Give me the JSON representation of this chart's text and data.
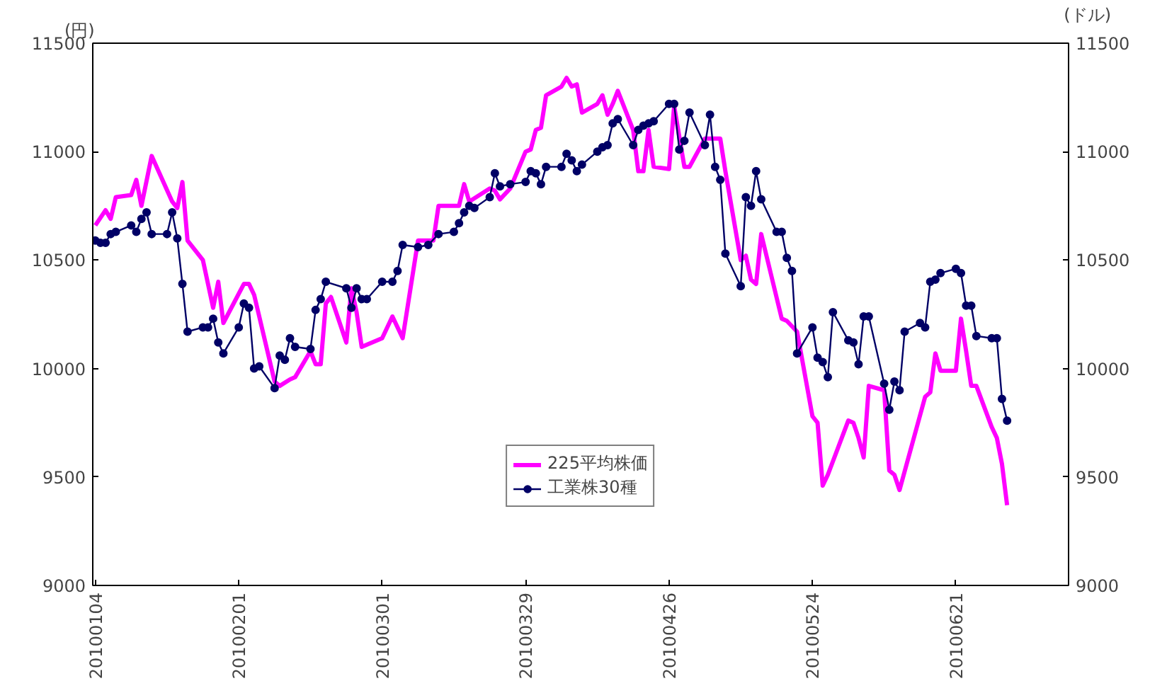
{
  "chart_data": {
    "type": "line",
    "ylabel": "(円)",
    "y2label": "(ドル)",
    "xlim": [
      "2010-01-03T12:00",
      "2010-07-13"
    ],
    "xticks": [
      {
        "value": "2010-01-04",
        "label": "20100104"
      },
      {
        "value": "2010-02-01",
        "label": "20100201"
      },
      {
        "value": "2010-03-01",
        "label": "20100301"
      },
      {
        "value": "2010-03-29",
        "label": "20100329"
      },
      {
        "value": "2010-04-26",
        "label": "20100426"
      },
      {
        "value": "2010-05-24",
        "label": "20100524"
      },
      {
        "value": "2010-06-21",
        "label": "20100621"
      }
    ],
    "ylim": [
      9000,
      11500
    ],
    "yticks": [
      9000,
      9500,
      10000,
      10500,
      11000,
      11500
    ],
    "y2lim": [
      9000,
      11500
    ],
    "y2ticks": [
      9000,
      9500,
      10000,
      10500,
      11000,
      11500
    ],
    "grid": false,
    "legend": "bottom",
    "series": [
      {
        "name": "225平均株価",
        "color": "#ff00ff",
        "marker": "none",
        "x": [
          "2010-01-04",
          "2010-01-06",
          "2010-01-07",
          "2010-01-08",
          "2010-01-11",
          "2010-01-12",
          "2010-01-13",
          "2010-01-15",
          "2010-01-19",
          "2010-01-20",
          "2010-01-21",
          "2010-01-22",
          "2010-01-25",
          "2010-01-27",
          "2010-01-28",
          "2010-01-29",
          "2010-02-02",
          "2010-02-03",
          "2010-02-04",
          "2010-02-08",
          "2010-02-09",
          "2010-02-11",
          "2010-02-12",
          "2010-02-15",
          "2010-02-16",
          "2010-02-17",
          "2010-02-18",
          "2010-02-19",
          "2010-02-22",
          "2010-02-23",
          "2010-02-24",
          "2010-02-25",
          "2010-03-01",
          "2010-03-03",
          "2010-03-05",
          "2010-03-08",
          "2010-03-11",
          "2010-03-12",
          "2010-03-16",
          "2010-03-17",
          "2010-03-18",
          "2010-03-22",
          "2010-03-23",
          "2010-03-24",
          "2010-03-26",
          "2010-03-29",
          "2010-03-30",
          "2010-03-31",
          "2010-04-01",
          "2010-04-02",
          "2010-04-05",
          "2010-04-06",
          "2010-04-07",
          "2010-04-08",
          "2010-04-09",
          "2010-04-12",
          "2010-04-13",
          "2010-04-14",
          "2010-04-15",
          "2010-04-16",
          "2010-04-19",
          "2010-04-20",
          "2010-04-21",
          "2010-04-22",
          "2010-04-23",
          "2010-04-26",
          "2010-04-27",
          "2010-04-29",
          "2010-04-30",
          "2010-05-03",
          "2010-05-06",
          "2010-05-07",
          "2010-05-10",
          "2010-05-11",
          "2010-05-12",
          "2010-05-13",
          "2010-05-14",
          "2010-05-18",
          "2010-05-19",
          "2010-05-21",
          "2010-05-24",
          "2010-05-25",
          "2010-05-26",
          "2010-05-27",
          "2010-05-31",
          "2010-06-01",
          "2010-06-02",
          "2010-06-03",
          "2010-06-04",
          "2010-06-07",
          "2010-06-08",
          "2010-06-09",
          "2010-06-10",
          "2010-06-15",
          "2010-06-16",
          "2010-06-17",
          "2010-06-18",
          "2010-06-21",
          "2010-06-22",
          "2010-06-23",
          "2010-06-24",
          "2010-06-25",
          "2010-06-28",
          "2010-06-29",
          "2010-06-30",
          "2010-07-01"
        ],
        "values": [
          10660,
          10730,
          10690,
          10790,
          10800,
          10870,
          10750,
          10980,
          10770,
          10740,
          10860,
          10590,
          10500,
          10280,
          10400,
          10210,
          10390,
          10390,
          10340,
          9940,
          9920,
          9950,
          9960,
          10080,
          10020,
          10020,
          10300,
          10330,
          10120,
          10370,
          10260,
          10100,
          10140,
          10240,
          10140,
          10590,
          10590,
          10750,
          10750,
          10850,
          10770,
          10830,
          10820,
          10780,
          10830,
          11000,
          11010,
          11100,
          11110,
          11260,
          11300,
          11340,
          11300,
          11310,
          11180,
          11220,
          11260,
          11170,
          11220,
          11280,
          11100,
          10910,
          10910,
          11100,
          10930,
          10920,
          11210,
          10930,
          10930,
          11060,
          11060,
          10910,
          10500,
          10520,
          10410,
          10390,
          10620,
          10230,
          10220,
          10170,
          9780,
          9750,
          9460,
          9510,
          9760,
          9750,
          9680,
          9590,
          9920,
          9900,
          9530,
          9510,
          9440,
          9870,
          9890,
          10070,
          9990,
          9990,
          10230,
          10080,
          9920,
          9920,
          9730,
          9680,
          9560,
          9370
        ]
      },
      {
        "name": "工業株30種",
        "color": "#000066",
        "marker": "circle",
        "axis": "y2",
        "x": [
          "2010-01-04",
          "2010-01-05",
          "2010-01-06",
          "2010-01-07",
          "2010-01-08",
          "2010-01-11",
          "2010-01-12",
          "2010-01-13",
          "2010-01-14",
          "2010-01-15",
          "2010-01-18",
          "2010-01-19",
          "2010-01-20",
          "2010-01-21",
          "2010-01-22",
          "2010-01-25",
          "2010-01-26",
          "2010-01-27",
          "2010-01-28",
          "2010-01-29",
          "2010-02-01",
          "2010-02-02",
          "2010-02-03",
          "2010-02-04",
          "2010-02-05",
          "2010-02-08",
          "2010-02-09",
          "2010-02-10",
          "2010-02-11",
          "2010-02-12",
          "2010-02-15",
          "2010-02-16",
          "2010-02-17",
          "2010-02-18",
          "2010-02-22",
          "2010-02-23",
          "2010-02-24",
          "2010-02-25",
          "2010-02-26",
          "2010-03-01",
          "2010-03-03",
          "2010-03-04",
          "2010-03-05",
          "2010-03-08",
          "2010-03-10",
          "2010-03-12",
          "2010-03-15",
          "2010-03-16",
          "2010-03-17",
          "2010-03-18",
          "2010-03-19",
          "2010-03-22",
          "2010-03-23",
          "2010-03-24",
          "2010-03-26",
          "2010-03-29",
          "2010-03-30",
          "2010-03-31",
          "2010-04-01",
          "2010-04-02",
          "2010-04-05",
          "2010-04-06",
          "2010-04-07",
          "2010-04-08",
          "2010-04-09",
          "2010-04-12",
          "2010-04-13",
          "2010-04-14",
          "2010-04-15",
          "2010-04-16",
          "2010-04-19",
          "2010-04-20",
          "2010-04-21",
          "2010-04-22",
          "2010-04-23",
          "2010-04-26",
          "2010-04-27",
          "2010-04-28",
          "2010-04-29",
          "2010-04-30",
          "2010-05-03",
          "2010-05-04",
          "2010-05-05",
          "2010-05-06",
          "2010-05-07",
          "2010-05-10",
          "2010-05-11",
          "2010-05-12",
          "2010-05-13",
          "2010-05-14",
          "2010-05-17",
          "2010-05-18",
          "2010-05-19",
          "2010-05-20",
          "2010-05-21",
          "2010-05-24",
          "2010-05-25",
          "2010-05-26",
          "2010-05-27",
          "2010-05-28",
          "2010-05-31",
          "2010-06-01",
          "2010-06-02",
          "2010-06-03",
          "2010-06-04",
          "2010-06-07",
          "2010-06-08",
          "2010-06-09",
          "2010-06-10",
          "2010-06-11",
          "2010-06-14",
          "2010-06-15",
          "2010-06-16",
          "2010-06-17",
          "2010-06-18",
          "2010-06-21",
          "2010-06-22",
          "2010-06-23",
          "2010-06-24",
          "2010-06-25",
          "2010-06-28",
          "2010-06-29",
          "2010-06-30",
          "2010-07-01"
        ],
        "values": [
          10590,
          10580,
          10580,
          10620,
          10630,
          10660,
          10630,
          10690,
          10720,
          10620,
          10620,
          10720,
          10600,
          10390,
          10170,
          10190,
          10190,
          10230,
          10120,
          10070,
          10190,
          10300,
          10280,
          10000,
          10010,
          9910,
          10060,
          10040,
          10140,
          10100,
          10090,
          10270,
          10320,
          10400,
          10370,
          10280,
          10370,
          10320,
          10320,
          10400,
          10400,
          10450,
          10570,
          10560,
          10570,
          10620,
          10630,
          10670,
          10720,
          10750,
          10740,
          10790,
          10900,
          10840,
          10850,
          10860,
          10910,
          10900,
          10850,
          10930,
          10930,
          10990,
          10960,
          10910,
          10940,
          11000,
          11020,
          11030,
          11130,
          11150,
          11030,
          11100,
          11120,
          11130,
          11140,
          11220,
          11220,
          11010,
          11050,
          11180,
          11030,
          11170,
          10930,
          10870,
          10530,
          10380,
          10790,
          10750,
          10910,
          10780,
          10630,
          10630,
          10510,
          10450,
          10070,
          10190,
          10050,
          10030,
          9960,
          10260,
          10130,
          10120,
          10020,
          10240,
          10240,
          9930,
          9810,
          9940,
          9900,
          10170,
          10210,
          10190,
          10400,
          10410,
          10440,
          10460,
          10440,
          10290,
          10290,
          10150,
          10140,
          10140,
          9860,
          9760
        ]
      }
    ]
  }
}
